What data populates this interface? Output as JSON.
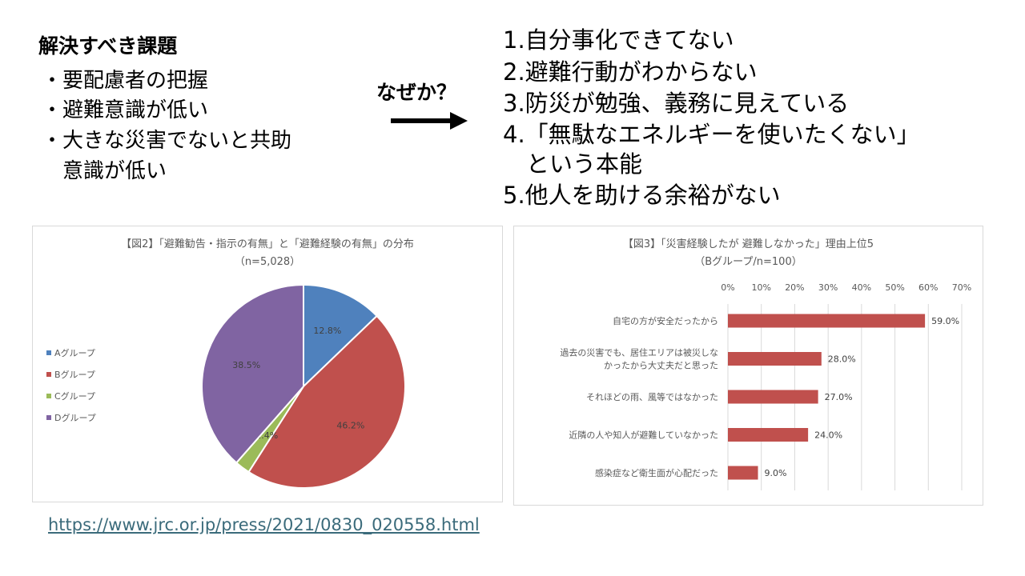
{
  "issues": {
    "title": "解決すべき課題",
    "items": [
      "・要配慮者の把握",
      "・避難意識が低い",
      "・大きな災害でないと共助",
      "　意識が低い"
    ]
  },
  "why": {
    "label": "なぜか？",
    "arrow_icon": "right-arrow-icon"
  },
  "reasons": [
    "1.自分事化できてない",
    "2.避難行動がわからない",
    "3.防災が勉強、義務に見えている",
    "4.「無駄なエネルギーを使いたくない」",
    "　という本能",
    "5.他人を助ける余裕がない"
  ],
  "source_url": "https://www.jrc.or.jp/press/2021/0830_020558.html",
  "chart_data": [
    {
      "type": "pie",
      "title": "【図2】「避難勧告・指示の有無」と「避難経験の有無」の分布",
      "subtitle": "（n=5,028）",
      "categories": [
        "Aグループ",
        "Bグループ",
        "Cグループ",
        "Dグループ"
      ],
      "values": [
        12.8,
        46.2,
        2.4,
        38.5
      ],
      "labels": [
        "12.8%",
        "46.2%",
        "2.4%",
        "38.5%"
      ],
      "colors": [
        "#4f81bd",
        "#c0504d",
        "#9bbb59",
        "#8064a2"
      ],
      "legend": "left"
    },
    {
      "type": "bar",
      "orientation": "horizontal",
      "title": "【図3】「災害経験したが 避難しなかった」理由上位5",
      "subtitle": "（Bグループ/n=100）",
      "categories": [
        "自宅の方が安全だったから",
        "過去の災害でも、居住エリアは被災しな|かったから大丈夫だと思った",
        "それほどの雨、風等ではなかった",
        "近隣の人や知人が避難していなかった",
        "感染症など衛生面が心配だった"
      ],
      "values": [
        59.0,
        28.0,
        27.0,
        24.0,
        9.0
      ],
      "labels": [
        "59.0%",
        "28.0%",
        "27.0%",
        "24.0%",
        "9.0%"
      ],
      "xlim": [
        0,
        70
      ],
      "ticks": [
        "0%",
        "10%",
        "20%",
        "30%",
        "40%",
        "50%",
        "60%",
        "70%"
      ],
      "color": "#c0504d",
      "grid": true
    }
  ]
}
